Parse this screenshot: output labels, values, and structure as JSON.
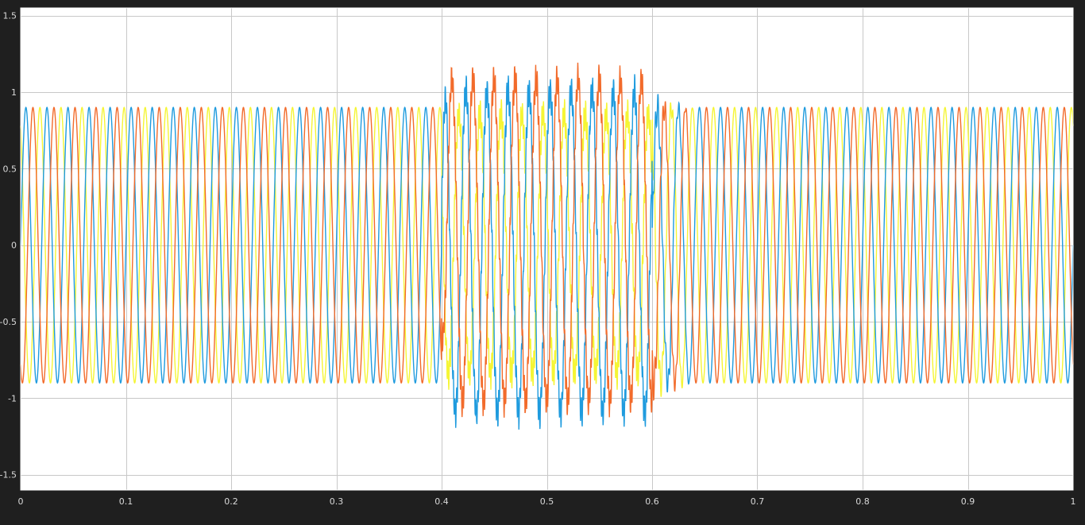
{
  "window": {
    "background": "#1f1f1f",
    "plot_background": "#ffffff"
  },
  "chart_data": {
    "type": "line",
    "title": "",
    "xlabel": "",
    "ylabel": "",
    "xlim": [
      0,
      1
    ],
    "ylim": [
      -1.6,
      1.55
    ],
    "grid": true,
    "x_ticks": [
      0,
      0.1,
      0.2,
      0.3,
      0.4,
      0.5,
      0.6,
      0.7,
      0.8,
      0.9,
      1
    ],
    "x_tick_labels": [
      "0",
      "0.1",
      "0.2",
      "0.3",
      "0.4",
      "0.5",
      "0.6",
      "0.7",
      "0.8",
      "0.9",
      "1"
    ],
    "y_ticks": [
      -1.5,
      -1,
      -0.5,
      0,
      0.5,
      1,
      1.5
    ],
    "y_tick_labels": [
      "-1.5",
      "-1",
      "-0.5",
      "0",
      "0.5",
      "1",
      "1.5"
    ],
    "signal": {
      "frequency_hz": 50,
      "amplitude": 0.9,
      "phase_shift_deg": [
        0,
        -120,
        120
      ],
      "fault_window": [
        0.4,
        0.6
      ]
    },
    "series": [
      {
        "color": "#0072BD",
        "peak_during_fault": 1.0,
        "min_during_fault": -1.3
      },
      {
        "color": "#D95319",
        "peak_during_fault": 1.25,
        "min_during_fault": -1.05
      },
      {
        "color": "#EDB120",
        "peak_during_fault": 0.95,
        "min_during_fault": -0.9
      }
    ],
    "display_colors": [
      "#1f9bde",
      "#f26b2b",
      "#f5f534"
    ]
  }
}
